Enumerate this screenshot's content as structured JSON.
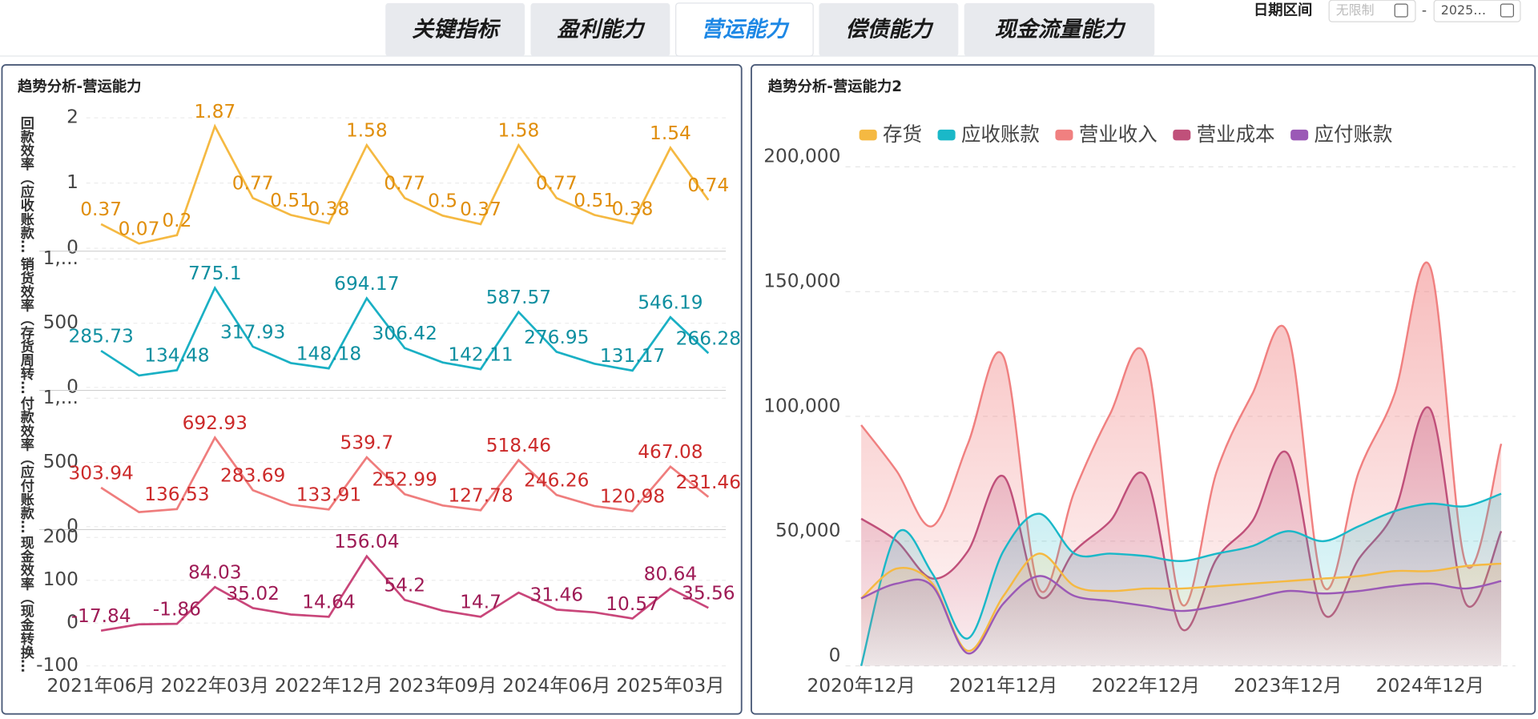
{
  "tabs": [
    "关键指标",
    "盈利能力",
    "营运能力",
    "偿债能力",
    "现金流量能力"
  ],
  "active_tab": 2,
  "date_filter": {
    "label": "日期区间",
    "start": "无限制",
    "separator": "-",
    "end": "2025…"
  },
  "chart_data": [
    {
      "type": "line",
      "title": "趋势分析-营运能力",
      "categories": [
        "2021年06月",
        null,
        null,
        "2022年03月",
        null,
        null,
        "2022年12月",
        null,
        null,
        "2023年09月",
        null,
        null,
        "2024年06月",
        null,
        null,
        "2025年03月",
        null
      ],
      "panels": [
        {
          "ylabel": "回款效率（应收账款…",
          "color": "#f5b942",
          "label_color": "#e08e0b",
          "ylim": [
            0,
            2
          ],
          "yticks": [
            0,
            1,
            2
          ],
          "values": [
            0.37,
            0.07,
            0.2,
            1.87,
            0.77,
            0.51,
            0.38,
            1.58,
            0.77,
            0.5,
            0.37,
            1.58,
            0.77,
            0.51,
            0.38,
            1.54,
            0.74
          ],
          "value_labels": [
            "0.37",
            "0.07",
            "0.2",
            "1.87",
            "0.77",
            "0.51",
            "0.38",
            "1.58",
            "0.77",
            "0.5",
            "0.37",
            "1.58",
            "0.77",
            "0.51",
            "0.38",
            "1.54",
            "0.74"
          ]
        },
        {
          "ylabel": "销货效率（存货周转…",
          "color": "#1ab0c4",
          "label_color": "#0e8fa0",
          "ylim": [
            0,
            1000
          ],
          "yticks": [
            0,
            500,
            {
              "value": 1000,
              "label": "1,..."
            }
          ],
          "values": [
            285.73,
            93,
            134.48,
            775.1,
            317.93,
            190,
            148.18,
            694.17,
            306.42,
            195,
            142.11,
            587.57,
            276.95,
            185,
            131.17,
            546.19,
            266.28
          ],
          "value_labels": [
            "285.73",
            null,
            "134.48",
            "775.1",
            "317.93",
            null,
            "148.18",
            "694.17",
            "306.42",
            null,
            "142.11",
            "587.57",
            "276.95",
            null,
            "131.17",
            "546.19",
            "266.28"
          ]
        },
        {
          "ylabel": "付款效率（应付账款…",
          "color": "#ef7d7d",
          "label_color": "#cc2a2a",
          "ylim": [
            0,
            1000
          ],
          "yticks": [
            0,
            500,
            {
              "value": 1000,
              "label": "1,..."
            }
          ],
          "values": [
            303.94,
            113,
            136.53,
            692.93,
            283.69,
            170,
            133.91,
            539.7,
            252.99,
            165,
            127.78,
            518.46,
            246.26,
            160,
            120.98,
            467.08,
            231.46
          ],
          "value_labels": [
            "303.94",
            null,
            "136.53",
            "692.93",
            "283.69",
            null,
            "133.91",
            "539.7",
            "252.99",
            null,
            "127.78",
            "518.46",
            "246.26",
            null,
            "120.98",
            "467.08",
            "231.46"
          ]
        },
        {
          "ylabel": "现金效率（现金转换…",
          "color": "#c9467a",
          "label_color": "#9e1a55",
          "ylim": [
            -100,
            200
          ],
          "yticks": [
            -100,
            0,
            100,
            200
          ],
          "values": [
            -17.84,
            -3,
            -1.86,
            84.03,
            35.02,
            20,
            14.64,
            156.04,
            54.2,
            29,
            14.7,
            71,
            31.46,
            25,
            10.57,
            80.64,
            35.56
          ],
          "value_labels": [
            "-17.84",
            null,
            "-1.86",
            "84.03",
            "35.02",
            null,
            "14.64",
            "156.04",
            "54.2",
            null,
            "14.7",
            null,
            "31.46",
            null,
            "10.57",
            "80.64",
            "35.56"
          ]
        }
      ]
    },
    {
      "type": "area",
      "title": "趋势分析-营运能力2",
      "categories": [
        "2020年12月",
        null,
        null,
        null,
        "2021年12月",
        null,
        null,
        null,
        "2022年12月",
        null,
        null,
        null,
        "2023年12月",
        null,
        null,
        null,
        "2024年12月",
        null,
        null
      ],
      "ylim": [
        0,
        200000
      ],
      "yticks": [
        0,
        {
          "value": 50000,
          "label": "50,000"
        },
        {
          "value": 100000,
          "label": "100,000"
        },
        {
          "value": 150000,
          "label": "150,000"
        },
        {
          "value": 200000,
          "label": "200,000"
        }
      ],
      "grid": true,
      "series": [
        {
          "name": "存货",
          "color": "#f5b942",
          "values": [
            27000,
            39000,
            33000,
            6000,
            28000,
            45000,
            32000,
            30000,
            31000,
            31000,
            32000,
            33000,
            34000,
            35000,
            36000,
            38000,
            38000,
            40000,
            41000
          ]
        },
        {
          "name": "应收账款",
          "color": "#1ab8c8",
          "values": [
            0,
            53000,
            37000,
            11000,
            46000,
            61000,
            45000,
            45000,
            44000,
            42000,
            45000,
            48000,
            54000,
            50000,
            56000,
            62000,
            65000,
            64000,
            69000
          ]
        },
        {
          "name": "营业收入",
          "color": "#f08080",
          "values": [
            96500,
            78000,
            56000,
            89000,
            124000,
            31000,
            70000,
            101000,
            124000,
            25000,
            78000,
            109000,
            133000,
            32000,
            78000,
            109000,
            160000,
            41000,
            89000
          ]
        },
        {
          "name": "营业成本",
          "color": "#c0507a",
          "values": [
            59000,
            50000,
            35000,
            46000,
            76000,
            28000,
            46000,
            58000,
            76000,
            15000,
            43000,
            58000,
            85000,
            21000,
            43000,
            62000,
            103000,
            25000,
            54000
          ]
        },
        {
          "name": "应付账款",
          "color": "#9b59b6",
          "values": [
            27000,
            33000,
            32000,
            5000,
            25000,
            36000,
            28000,
            26000,
            24000,
            22000,
            24000,
            27000,
            30000,
            29000,
            30000,
            32000,
            33000,
            31000,
            34000
          ]
        }
      ]
    }
  ]
}
